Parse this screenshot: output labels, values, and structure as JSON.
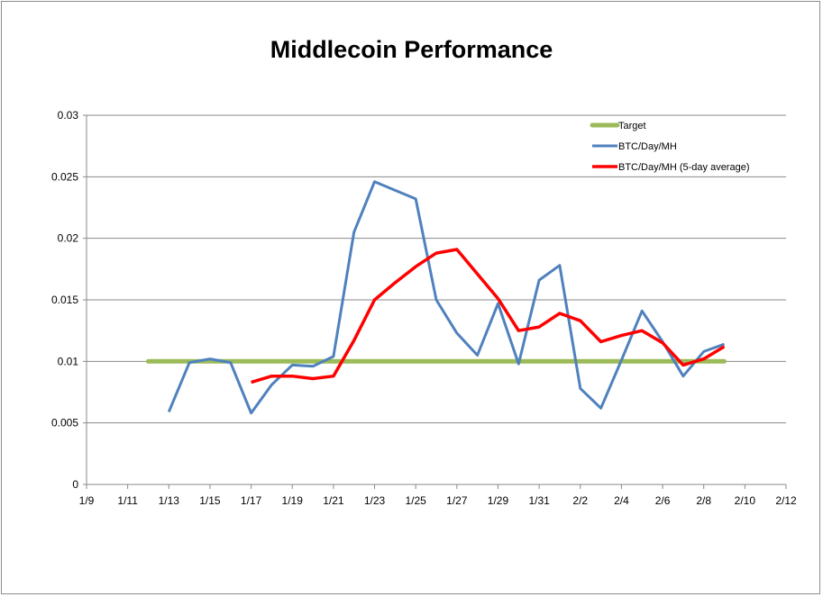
{
  "chart_data": {
    "type": "line",
    "title": "Middlecoin Performance",
    "xlabel": "",
    "ylabel": "",
    "x_tick_labels": [
      "1/9",
      "1/11",
      "1/13",
      "1/15",
      "1/17",
      "1/19",
      "1/21",
      "1/23",
      "1/25",
      "1/27",
      "1/29",
      "1/31",
      "2/2",
      "2/4",
      "2/6",
      "2/8",
      "2/10",
      "2/12"
    ],
    "x_range_day_index": [
      0,
      34
    ],
    "y_tick_labels": [
      "0",
      "0.005",
      "0.01",
      "0.015",
      "0.02",
      "0.025",
      "0.03"
    ],
    "ylim": [
      0,
      0.03
    ],
    "grid": "horizontal major gridlines",
    "legend_position": "top-right inside plot",
    "series": [
      {
        "name": "Target",
        "color": "#9bbb59",
        "x": [
          "1/12",
          "2/9"
        ],
        "y": [
          0.01,
          0.01
        ]
      },
      {
        "name": "BTC/Day/MH",
        "color": "#4f81bd",
        "x": [
          "1/13",
          "1/14",
          "1/15",
          "1/16",
          "1/17",
          "1/18",
          "1/19",
          "1/20",
          "1/21",
          "1/22",
          "1/23",
          "1/24",
          "1/25",
          "1/26",
          "1/27",
          "1/28",
          "1/29",
          "1/30",
          "1/31",
          "2/1",
          "2/2",
          "2/3",
          "2/4",
          "2/5",
          "2/6",
          "2/7",
          "2/8",
          "2/9"
        ],
        "y": [
          0.0059,
          0.0099,
          0.0102,
          0.0099,
          0.0058,
          0.0081,
          0.0097,
          0.0096,
          0.0104,
          0.0205,
          0.0246,
          0.0239,
          0.0232,
          0.015,
          0.0123,
          0.0105,
          0.0147,
          0.0098,
          0.0166,
          0.0178,
          0.0078,
          0.0062,
          0.0101,
          0.0141,
          0.0116,
          0.0088,
          0.0108,
          0.0114
        ]
      },
      {
        "name": "BTC/Day/MH (5-day average)",
        "color": "#ff0000",
        "x": [
          "1/17",
          "1/18",
          "1/19",
          "1/20",
          "1/21",
          "1/22",
          "1/23",
          "1/24",
          "1/25",
          "1/26",
          "1/27",
          "1/28",
          "1/29",
          "1/30",
          "1/31",
          "2/1",
          "2/2",
          "2/3",
          "2/4",
          "2/5",
          "2/6",
          "2/7",
          "2/8",
          "2/9"
        ],
        "y": [
          0.0083,
          0.0088,
          0.0088,
          0.0086,
          0.0088,
          0.0117,
          0.015,
          0.0164,
          0.0177,
          0.0188,
          0.0191,
          0.0171,
          0.0151,
          0.0125,
          0.0128,
          0.0139,
          0.0133,
          0.0116,
          0.0121,
          0.0125,
          0.0115,
          0.0097,
          0.0102,
          0.0112
        ]
      }
    ]
  }
}
